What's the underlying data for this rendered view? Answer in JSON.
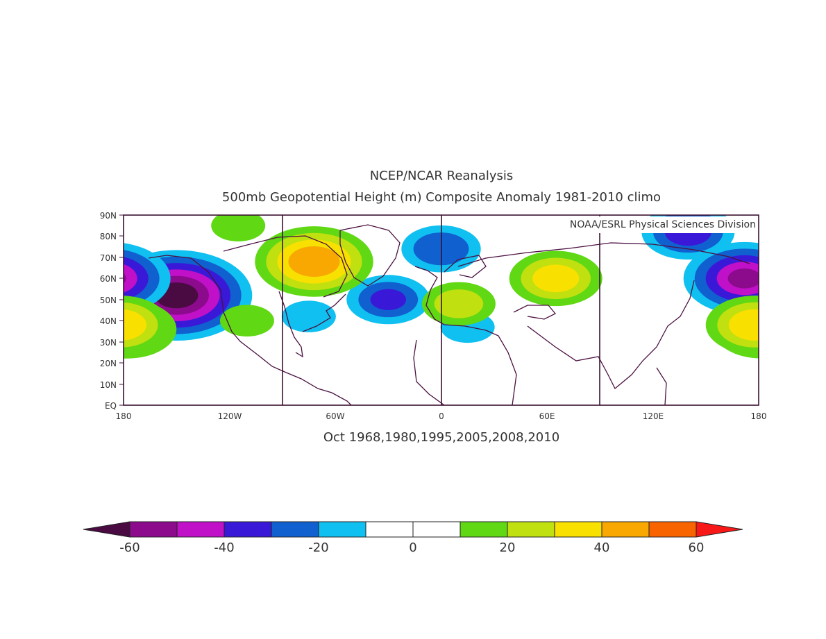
{
  "map": {
    "title": "NCEP/NCAR Reanalysis",
    "subtitle": "500mb Geopotential Height (m) Composite Anomaly 1981-2010 climo",
    "credit": "NOAA/ESRL Physical Sciences Division",
    "caption": "Oct 1968,1980,1995,2005,2008,2010",
    "lat_labels": [
      "EQ",
      "10N",
      "20N",
      "30N",
      "40N",
      "50N",
      "60N",
      "70N",
      "80N",
      "90N"
    ],
    "lon_labels": [
      "180",
      "120W",
      "60W",
      "0",
      "60E",
      "120E",
      "180"
    ]
  },
  "anomalies": [
    {
      "name": "alaska-gulf-low",
      "lon": -150,
      "lat": 52,
      "value": -65
    },
    {
      "name": "bering-kamchatka-low",
      "lon": 172,
      "lat": 60,
      "value": -50
    },
    {
      "name": "north-atlantic-low",
      "lon": -30,
      "lat": 50,
      "value": -30
    },
    {
      "name": "arctic-low-north-europe",
      "lon": 0,
      "lat": 74,
      "value": -28
    },
    {
      "name": "siberian-arctic-low",
      "lon": 140,
      "lat": 82,
      "value": -35
    },
    {
      "name": "eastern-canada-trough",
      "lon": -75,
      "lat": 42,
      "value": -15
    },
    {
      "name": "mediterranean-low",
      "lon": 15,
      "lat": 37,
      "value": -15
    },
    {
      "name": "canada-greenland-high",
      "lon": -72,
      "lat": 68,
      "value": 48
    },
    {
      "name": "arctic-ocean-high",
      "lon": -115,
      "lat": 85,
      "value": 15
    },
    {
      "name": "western-russia-high",
      "lon": 65,
      "lat": 60,
      "value": 35
    },
    {
      "name": "central-europe-high",
      "lon": 10,
      "lat": 48,
      "value": 25
    },
    {
      "name": "subtropical-pacific-high-east",
      "lon": -178,
      "lat": 36,
      "value": 38
    },
    {
      "name": "north-pacific-high-west",
      "lon": 178,
      "lat": 38,
      "value": 38
    },
    {
      "name": "western-us-high",
      "lon": -110,
      "lat": 40,
      "value": 15
    }
  ],
  "colorbar": {
    "labels": [
      "-60",
      "-40",
      "-20",
      "0",
      "20",
      "40",
      "60"
    ],
    "colors": {
      "below": "#4a0a42",
      "c1": "#8c0a8c",
      "c2": "#c010c8",
      "c3": "#3a18d8",
      "c4": "#1060d0",
      "c5": "#10c0f0",
      "c6": "#ffffff",
      "c7": "#ffffff",
      "c8": "#60d814",
      "c9": "#c0e010",
      "c10": "#f8e000",
      "c11": "#f8a800",
      "c12": "#f86400",
      "above": "#f81818"
    }
  }
}
